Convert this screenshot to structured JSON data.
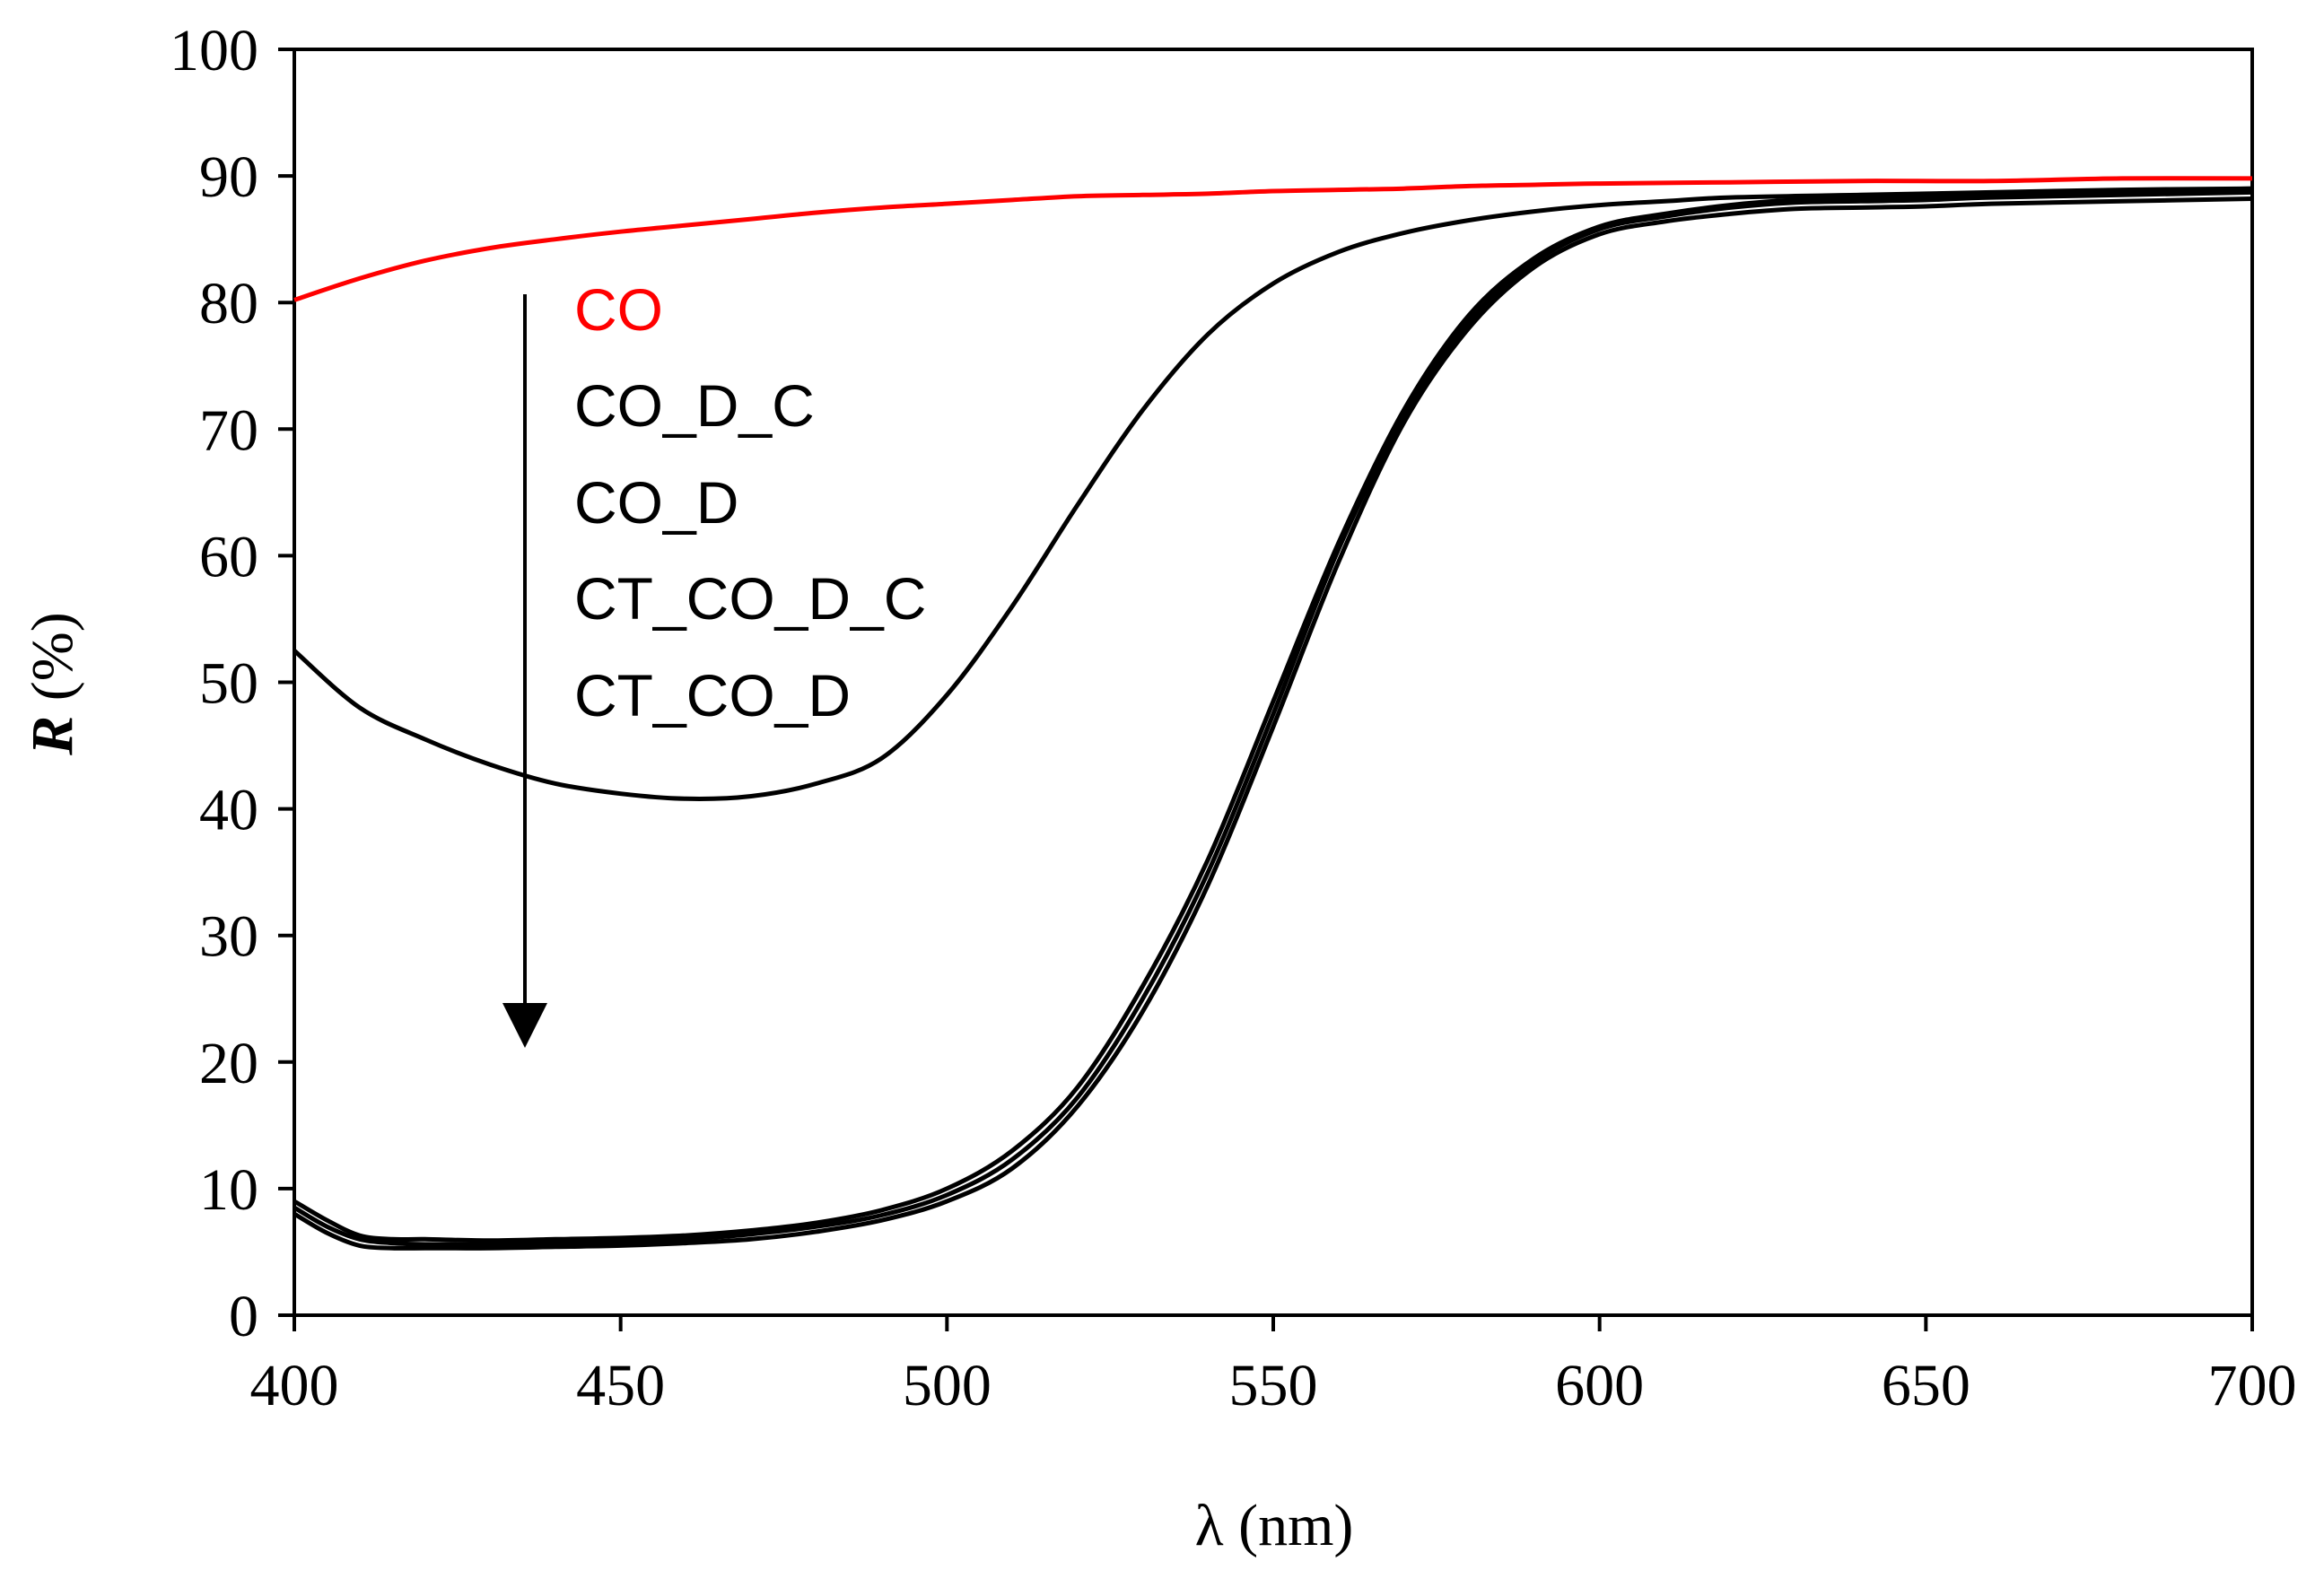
{
  "chart_data": {
    "type": "line",
    "title": "",
    "xlabel": "λ (nm)",
    "ylabel_bold": "R",
    "ylabel_rest": " (%)",
    "xlim": [
      400,
      700
    ],
    "ylim": [
      0,
      100
    ],
    "xticks": [
      400,
      450,
      500,
      550,
      600,
      650,
      700
    ],
    "yticks": [
      0,
      10,
      20,
      30,
      40,
      50,
      60,
      70,
      80,
      90,
      100
    ],
    "grid": false,
    "legend_order": [
      "CO",
      "CO_D_C",
      "CO_D",
      "CT_CO_D_C",
      "CT_CO_D"
    ],
    "legend_note": "arrow pointing down indicates decreasing reflectance in listed order",
    "series": [
      {
        "name": "CO",
        "color": "#ff0000",
        "x": [
          400,
          410,
          420,
          430,
          440,
          450,
          460,
          470,
          480,
          490,
          500,
          510,
          520,
          530,
          540,
          550,
          560,
          570,
          580,
          590,
          600,
          620,
          640,
          660,
          680,
          700
        ],
        "y": [
          80.2,
          81.9,
          83.3,
          84.3,
          85.0,
          85.6,
          86.1,
          86.6,
          87.1,
          87.5,
          87.8,
          88.1,
          88.4,
          88.5,
          88.6,
          88.8,
          88.9,
          89.0,
          89.2,
          89.3,
          89.4,
          89.5,
          89.6,
          89.6,
          89.8,
          89.8
        ]
      },
      {
        "name": "CO_D_C",
        "color": "#000000",
        "x": [
          400,
          410,
          420,
          430,
          440,
          450,
          460,
          470,
          480,
          490,
          500,
          510,
          520,
          530,
          540,
          550,
          560,
          570,
          580,
          590,
          600,
          610,
          620,
          640,
          660,
          680,
          700
        ],
        "y": [
          52.5,
          48.0,
          45.5,
          43.5,
          42.0,
          41.2,
          40.8,
          41.0,
          42.0,
          44.0,
          49.0,
          56.0,
          64.0,
          71.5,
          77.5,
          81.5,
          84.0,
          85.5,
          86.5,
          87.2,
          87.7,
          88.0,
          88.3,
          88.5,
          88.7,
          88.9,
          89.0
        ]
      },
      {
        "name": "CO_D",
        "color": "#000000",
        "x": [
          400,
          405,
          410,
          415,
          420,
          430,
          440,
          450,
          460,
          470,
          480,
          490,
          500,
          510,
          520,
          530,
          540,
          550,
          560,
          570,
          580,
          590,
          600,
          610,
          620,
          630,
          640,
          650,
          660,
          680,
          700
        ],
        "y": [
          9.0,
          7.5,
          6.3,
          6.0,
          6.0,
          5.9,
          6.0,
          6.1,
          6.3,
          6.7,
          7.3,
          8.3,
          10.0,
          13.0,
          18.0,
          26.0,
          36.0,
          48.5,
          61.0,
          71.5,
          79.0,
          83.5,
          86.0,
          87.0,
          87.7,
          88.1,
          88.2,
          88.3,
          88.6,
          88.8,
          89.0
        ]
      },
      {
        "name": "CT_CO_D_C",
        "color": "#000000",
        "x": [
          400,
          405,
          410,
          415,
          420,
          430,
          440,
          450,
          460,
          470,
          480,
          490,
          500,
          510,
          520,
          530,
          540,
          550,
          560,
          570,
          580,
          590,
          600,
          610,
          620,
          630,
          640,
          650,
          660,
          680,
          700
        ],
        "y": [
          8.5,
          7.0,
          6.0,
          5.7,
          5.6,
          5.6,
          5.7,
          5.8,
          6.0,
          6.4,
          7.0,
          7.9,
          9.5,
          12.3,
          17.2,
          25.0,
          35.0,
          47.5,
          60.5,
          71.0,
          78.5,
          83.2,
          85.8,
          86.8,
          87.5,
          87.9,
          88.0,
          88.1,
          88.3,
          88.5,
          88.7
        ]
      },
      {
        "name": "CT_CO_D",
        "color": "#000000",
        "x": [
          400,
          405,
          410,
          415,
          420,
          430,
          440,
          450,
          460,
          470,
          480,
          490,
          500,
          510,
          520,
          530,
          540,
          550,
          560,
          570,
          580,
          590,
          600,
          610,
          620,
          630,
          640,
          650,
          660,
          680,
          700
        ],
        "y": [
          8.0,
          6.5,
          5.5,
          5.3,
          5.3,
          5.3,
          5.4,
          5.5,
          5.7,
          6.0,
          6.6,
          7.5,
          9.0,
          11.6,
          16.5,
          24.0,
          34.0,
          46.5,
          59.5,
          70.5,
          78.0,
          82.8,
          85.4,
          86.4,
          87.0,
          87.4,
          87.5,
          87.6,
          87.8,
          88.0,
          88.2
        ]
      }
    ]
  }
}
